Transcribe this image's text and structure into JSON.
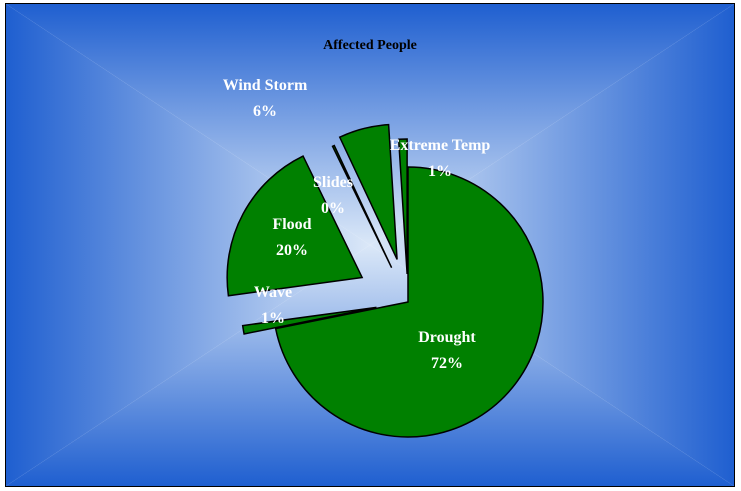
{
  "chart_data": {
    "type": "pie",
    "title": "Affected People",
    "exploded": true,
    "slices": [
      {
        "name": "Drought",
        "value": 72,
        "label": "72%"
      },
      {
        "name": "Wave",
        "value": 1,
        "label": "1%"
      },
      {
        "name": "Flood",
        "value": 20,
        "label": "20%"
      },
      {
        "name": "Slides",
        "value": 0,
        "label": "0%"
      },
      {
        "name": "Wind Storm",
        "value": 6,
        "label": "6%"
      },
      {
        "name": "Extreme Temp",
        "value": 1,
        "label": "1%"
      }
    ],
    "colors": {
      "slice_fill": "#008000",
      "slice_stroke": "#000000",
      "label_text": "#ffffff",
      "title_text": "#000000",
      "background_center": "#dbe8f8",
      "background_edge": "#1f5fd0"
    }
  }
}
